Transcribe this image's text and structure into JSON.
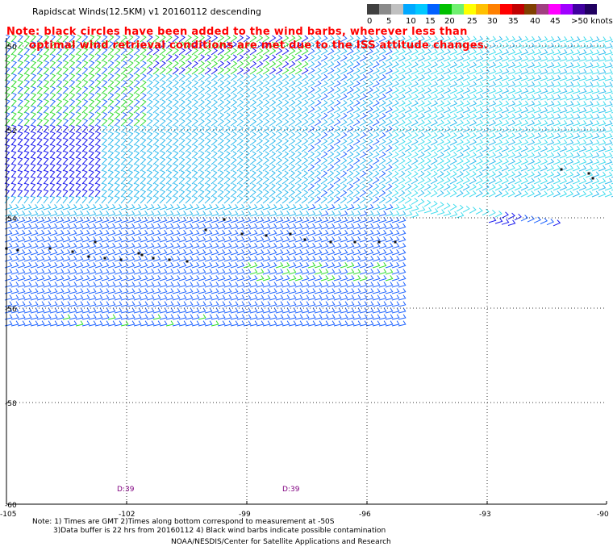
{
  "header": {
    "title": "Rapidscat Winds(12.5KM) v1 20160112 descending"
  },
  "notice": {
    "line1": "Note: black circles have been added to the wind barbs, wherever less than",
    "line2": "optimal wind retrieval conditions are met due to the ISS attitude changes."
  },
  "legend": {
    "labels": [
      "0",
      "5",
      "10",
      "15",
      "20",
      "25",
      "30",
      "35",
      "40",
      "45",
      ">50 knots"
    ],
    "colors": [
      "#404040",
      "#8a8a8a",
      "#c0c0c0",
      "#00a8ff",
      "#00c8ff",
      "#0060ff",
      "#00c000",
      "#70f070",
      "#ffff00",
      "#ffc000",
      "#ff8000",
      "#ff0000",
      "#c00000",
      "#804000",
      "#a04080",
      "#ff00ff",
      "#a000ff",
      "#4000a0",
      "#200060"
    ]
  },
  "map": {
    "lat_labels": [
      "-50",
      "-52",
      "-54",
      "-56",
      "-58",
      "-60"
    ],
    "lon_labels": [
      "-105",
      "-102",
      "-99",
      "-96",
      "-93",
      "-90"
    ],
    "time_labels": [
      "D:39",
      "D:39"
    ],
    "barb_colors": {
      "green": "#33dd33",
      "blue": "#1a1aee",
      "mid_blue": "#2266ff",
      "light_blue": "#33bbee",
      "cyan": "#44ddee",
      "black": "#111111",
      "grid": "#333333",
      "time_label": "#800080"
    }
  },
  "footer": {
    "line1": "Note: 1) Times are GMT 2)Times along bottom correspond to measurement at -50S",
    "line2": "3)Data buffer is 22 hrs from 20160112 4) Black wind barbs indicate possible contamination",
    "line3": "NOAA/NESDIS/Center for Satellite Applications and Research"
  }
}
